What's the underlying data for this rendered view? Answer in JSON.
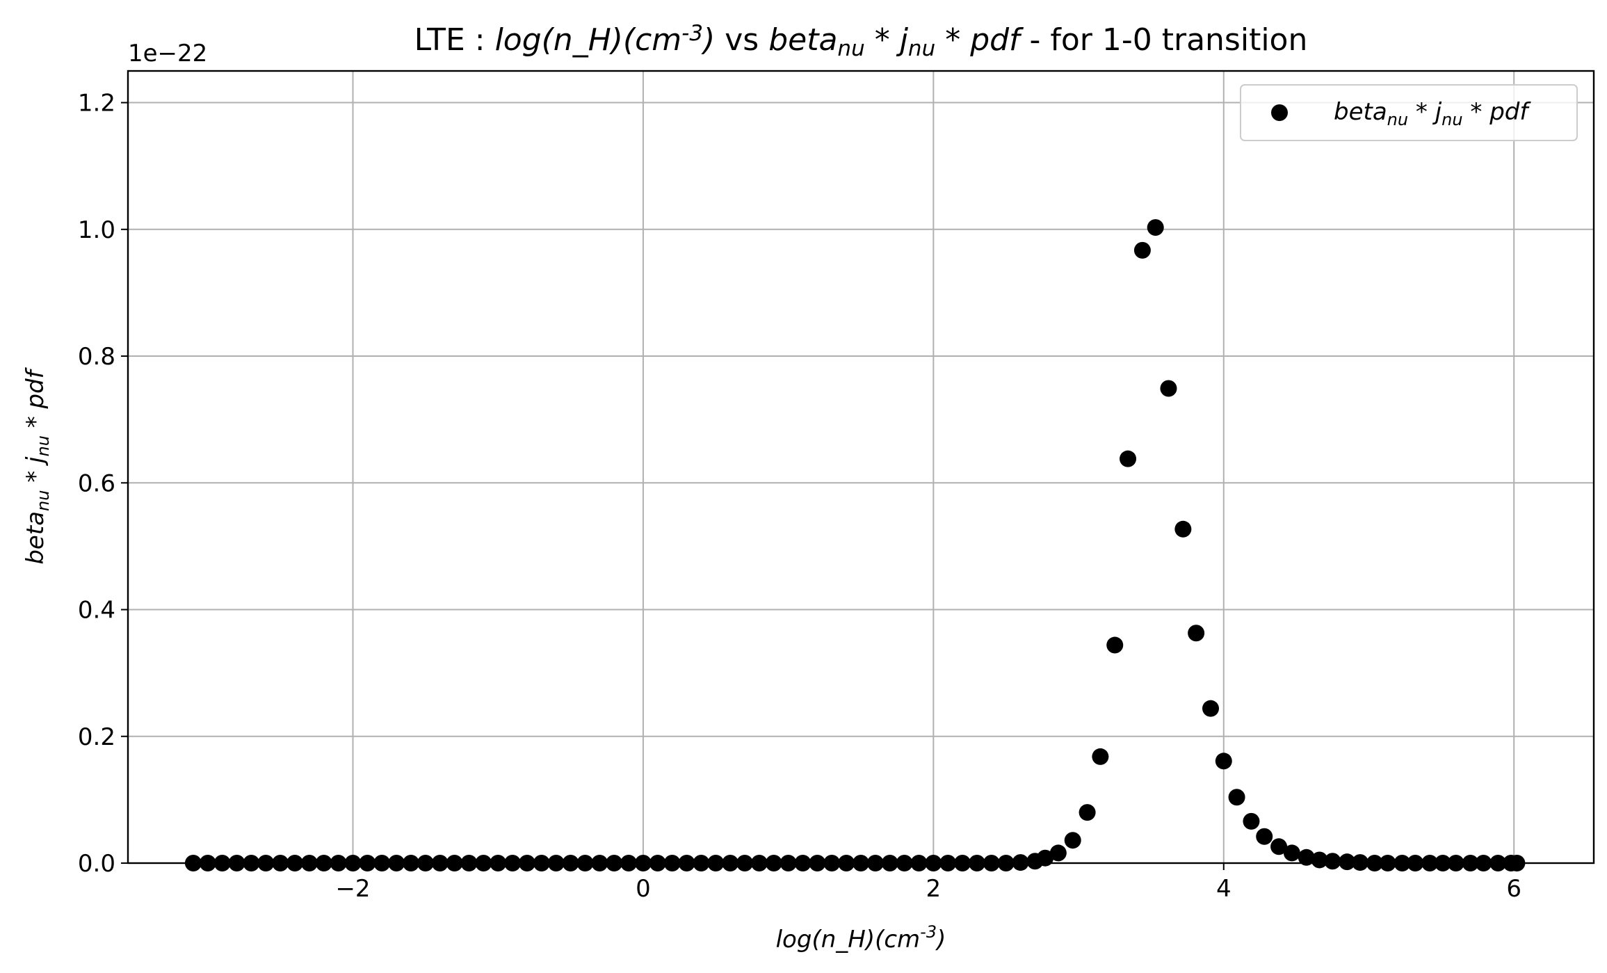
{
  "chart_data": {
    "type": "scatter",
    "title": {
      "prefix": "LTE : ",
      "x_expr": "log(n_H)(cm^{-3})",
      "middle": " vs ",
      "y_expr": "beta_{nu} * j_{nu} * pdf",
      "suffix": " - for 1-0 transition"
    },
    "xlabel": "log(n_H)(cm^{-3})",
    "ylabel": "beta_{nu} * j_{nu} * pdf",
    "y_offset_text": "1e−22",
    "xlim": [
      -3.55,
      6.55
    ],
    "ylim": [
      0,
      1.25
    ],
    "xticks": [
      -2,
      0,
      2,
      4,
      6
    ],
    "xtick_labels": [
      "−2",
      "0",
      "2",
      "4",
      "6"
    ],
    "yticks": [
      0.0,
      0.2,
      0.4,
      0.6,
      0.8,
      1.0,
      1.2
    ],
    "ytick_labels": [
      "0.0",
      "0.2",
      "0.4",
      "0.6",
      "0.8",
      "1.0",
      "1.2"
    ],
    "grid": true,
    "legend": {
      "location": "upper right",
      "entries": [
        "beta_{nu} * j_{nu} * pdf"
      ]
    },
    "marker_color": "#000000",
    "series": [
      {
        "name": "beta_{nu} * j_{nu} * pdf",
        "x": [
          -3.1,
          -3.0,
          -2.9,
          -2.8,
          -2.7,
          -2.6,
          -2.5,
          -2.4,
          -2.3,
          -2.2,
          -2.1,
          -2.0,
          -1.9,
          -1.8,
          -1.7,
          -1.6,
          -1.5,
          -1.4,
          -1.3,
          -1.2,
          -1.1,
          -1.0,
          -0.9,
          -0.8,
          -0.7,
          -0.6,
          -0.5,
          -0.4,
          -0.3,
          -0.2,
          -0.1,
          0.0,
          0.1,
          0.2,
          0.3,
          0.4,
          0.5,
          0.6,
          0.7,
          0.8,
          0.9,
          1.0,
          1.1,
          1.2,
          1.3,
          1.4,
          1.5,
          1.6,
          1.7,
          1.8,
          1.9,
          2.0,
          2.1,
          2.2,
          2.3,
          2.4,
          2.5,
          2.6,
          2.7,
          2.77,
          2.86,
          2.96,
          3.06,
          3.15,
          3.25,
          3.34,
          3.44,
          3.53,
          3.62,
          3.72,
          3.81,
          3.91,
          4.0,
          4.09,
          4.19,
          4.28,
          4.38,
          4.47,
          4.57,
          4.66,
          4.75,
          4.85,
          4.94,
          5.04,
          5.13,
          5.23,
          5.32,
          5.42,
          5.51,
          5.6,
          5.7,
          5.79,
          5.89,
          5.98,
          6.02
        ],
        "y": [
          0,
          0,
          0,
          0,
          0,
          0,
          0,
          0,
          0,
          0,
          0,
          0,
          0,
          0,
          0,
          0,
          0,
          0,
          0,
          0,
          0,
          0,
          0,
          0,
          0,
          0,
          0,
          0,
          0,
          0,
          0,
          0,
          0,
          0,
          0,
          0,
          0,
          0,
          0,
          0,
          0,
          0,
          0,
          0,
          0,
          0,
          0,
          0,
          0,
          0,
          0,
          0,
          0,
          0,
          0,
          0,
          0,
          0.001,
          0.003,
          0.008,
          0.016,
          0.036,
          0.08,
          0.168,
          0.344,
          0.638,
          0.967,
          1.003,
          0.749,
          0.527,
          0.363,
          0.244,
          0.161,
          0.104,
          0.066,
          0.042,
          0.026,
          0.016,
          0.009,
          0.005,
          0.003,
          0.002,
          0.001,
          0,
          0,
          0,
          0,
          0,
          0,
          0,
          0,
          0,
          0,
          0,
          0
        ]
      }
    ]
  }
}
